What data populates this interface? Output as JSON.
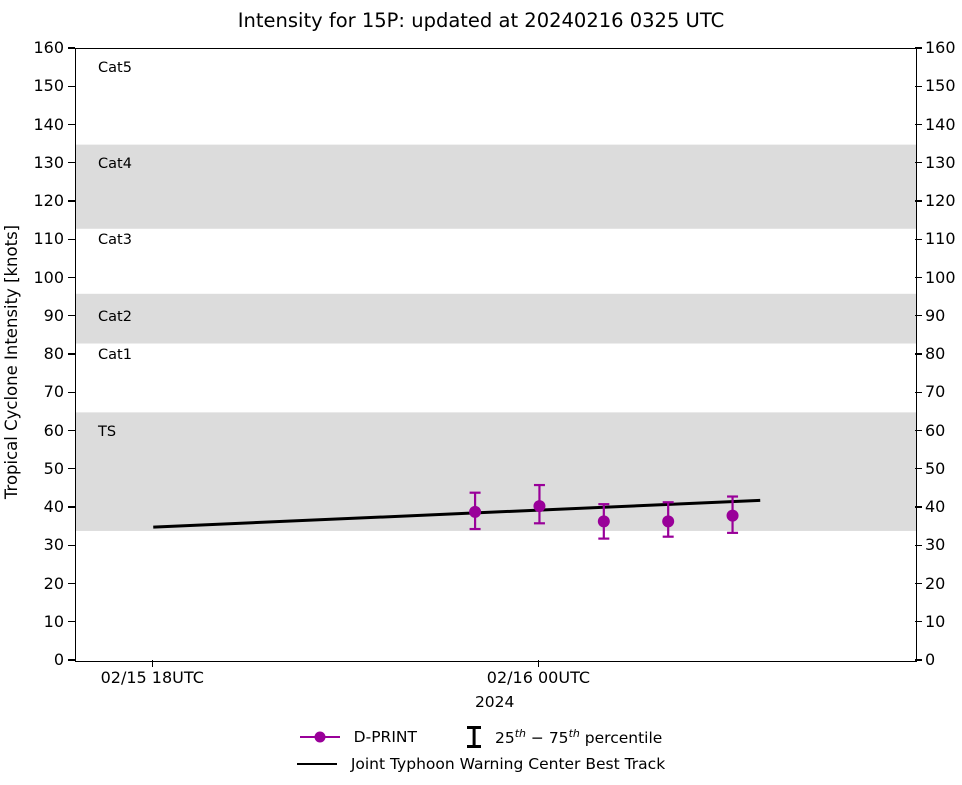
{
  "title": "Intensity for 15P: updated at 20240216 0325 UTC",
  "y_axis": {
    "label": "Tropical Cyclone Intensity [knots]",
    "min": 0,
    "max": 160,
    "ticks": [
      0,
      10,
      20,
      30,
      40,
      50,
      60,
      70,
      80,
      90,
      100,
      110,
      120,
      130,
      140,
      150,
      160
    ]
  },
  "x_axis": {
    "min_h": -1.2,
    "max_h": 11.85,
    "ticks": [
      {
        "label": "02/15 18UTC",
        "h": 0
      },
      {
        "label": "02/16 00UTC",
        "h": 6
      }
    ],
    "year_label": "2024",
    "year_h": 5.32
  },
  "colors": {
    "accent_purple": "#990099",
    "band_gray": "#DCDCDC",
    "line_black": "#000000"
  },
  "chart_data": {
    "type": "scatter-errorbar+line",
    "title": "Intensity for 15P: updated at 20240216 0325 UTC",
    "xlabel": "",
    "ylabel": "Tropical Cyclone Intensity [knots]",
    "ylim": [
      0,
      160
    ],
    "grid": false,
    "legend_position": "below",
    "bands": [
      {
        "name": "TS",
        "from": 34,
        "to": 65
      },
      {
        "name": "Cat2",
        "from": 83,
        "to": 96
      },
      {
        "name": "Cat4",
        "from": 113,
        "to": 135
      }
    ],
    "category_labels": [
      {
        "text": "Cat5",
        "v": 155
      },
      {
        "text": "Cat4",
        "v": 130
      },
      {
        "text": "Cat3",
        "v": 110
      },
      {
        "text": "Cat2",
        "v": 90
      },
      {
        "text": "Cat1",
        "v": 80
      },
      {
        "text": "TS",
        "v": 60
      }
    ],
    "series": [
      {
        "name": "D-PRINT",
        "style": "scatter-errorbar",
        "color": "#990099",
        "points": [
          {
            "time": "02/15 23UTC",
            "h": 5,
            "value": 39,
            "p25": 34.5,
            "p75": 44
          },
          {
            "time": "02/16 00UTC",
            "h": 6,
            "value": 40.5,
            "p25": 36,
            "p75": 46
          },
          {
            "time": "02/16 01UTC",
            "h": 7,
            "value": 36.5,
            "p25": 32,
            "p75": 41
          },
          {
            "time": "02/16 02UTC",
            "h": 8,
            "value": 36.5,
            "p25": 32.5,
            "p75": 41.5
          },
          {
            "time": "02/16 03UTC",
            "h": 9,
            "value": 38,
            "p25": 33.5,
            "p75": 43
          }
        ]
      },
      {
        "name": "Joint Typhoon Warning Center Best Track",
        "style": "line",
        "color": "#000000",
        "points": [
          {
            "time": "02/15 18UTC",
            "h": 0,
            "value": 35
          },
          {
            "time": "02/16 0325UTC",
            "h": 9.43,
            "value": 42
          }
        ]
      }
    ]
  },
  "legend": {
    "dprint_label": "D-PRINT",
    "percentile_parts": [
      "25",
      "th",
      " − 75",
      "th",
      " percentile"
    ],
    "besttrack_label": "Joint Typhoon Warning Center Best Track"
  }
}
